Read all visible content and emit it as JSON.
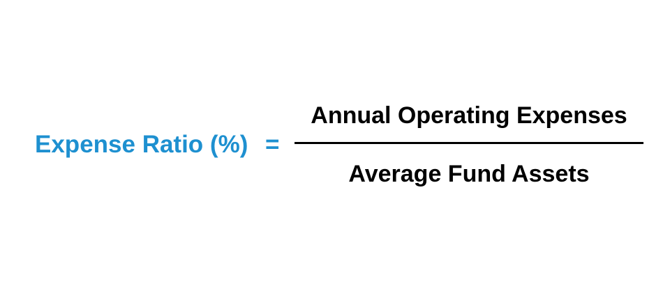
{
  "formula": {
    "lhs": "Expense Ratio (%)",
    "operator": "=",
    "numerator": "Annual Operating Expenses",
    "denominator": "Average Fund Assets"
  },
  "colors": {
    "lhs": "#1e90d0",
    "fraction_text": "#000000",
    "background": "#ffffff"
  }
}
